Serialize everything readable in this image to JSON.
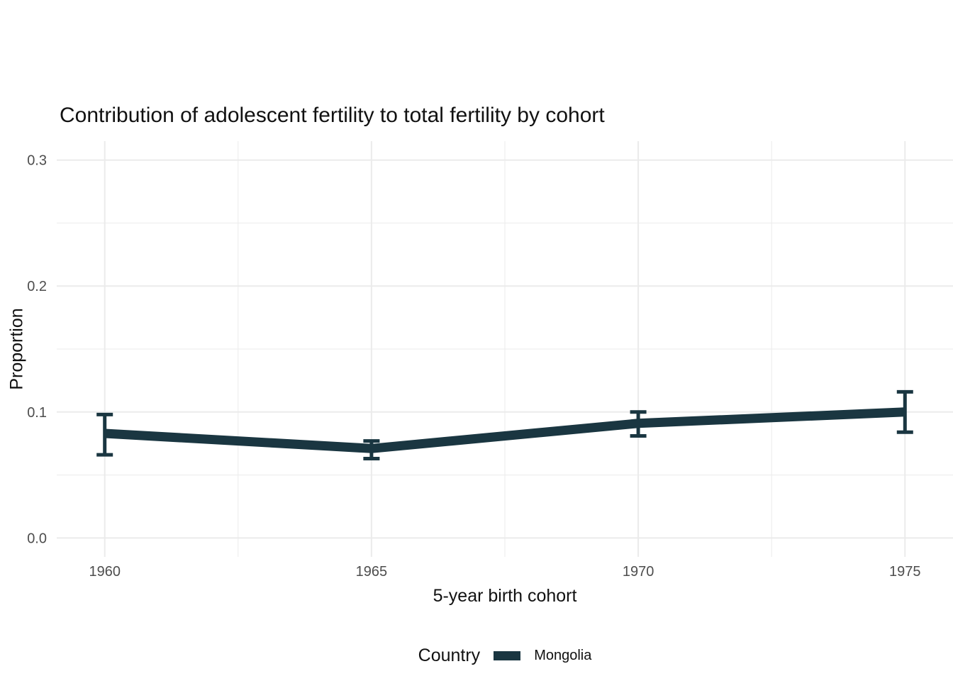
{
  "title": "Contribution of adolescent fertility to total fertility by cohort",
  "axes": {
    "x_title": "5-year birth cohort",
    "y_title": "Proportion"
  },
  "legend": {
    "title": "Country",
    "items": [
      {
        "label": "Mongolia",
        "color": "#1a3641"
      }
    ]
  },
  "colors": {
    "series": "#1a3641",
    "grid": "#ebebeb",
    "axis_text": "#4d4d4d",
    "text": "#111111",
    "background": "#ffffff"
  },
  "chart_data": {
    "type": "line",
    "title": "Contribution of adolescent fertility to total fertility by cohort",
    "xlabel": "5-year birth cohort",
    "ylabel": "Proportion",
    "x": [
      1960,
      1965,
      1970,
      1975
    ],
    "xticks": [
      "1960",
      "1965",
      "1970",
      "1975"
    ],
    "xtick_values": [
      1960,
      1965,
      1970,
      1975
    ],
    "yticks": [
      "0.0",
      "0.1",
      "0.2",
      "0.3"
    ],
    "ytick_values": [
      0.0,
      0.1,
      0.2,
      0.3
    ],
    "xlim": [
      1959.1,
      1975.9
    ],
    "ylim": [
      -0.015,
      0.315
    ],
    "x_minor_gridlines": [
      1962.5,
      1967.5,
      1972.5
    ],
    "y_minor_gridlines": [
      0.05,
      0.15,
      0.25
    ],
    "grid": "on",
    "legend_position": "bottom",
    "series": [
      {
        "name": "Mongolia",
        "color": "#1a3641",
        "values": [
          0.083,
          0.071,
          0.091,
          0.1
        ],
        "ymin": [
          0.066,
          0.063,
          0.081,
          0.084
        ],
        "ymax": [
          0.098,
          0.077,
          0.1,
          0.116
        ]
      }
    ]
  }
}
